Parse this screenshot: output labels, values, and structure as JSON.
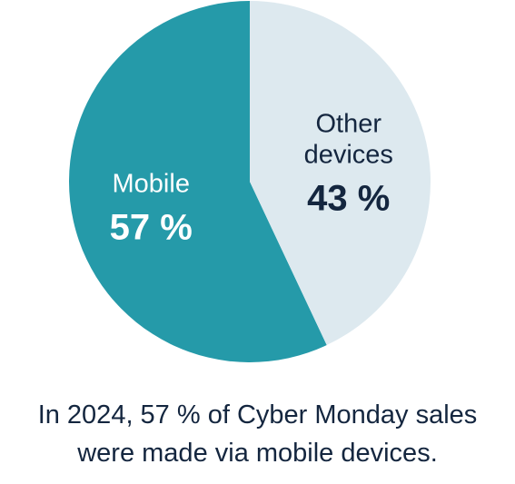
{
  "chart_data": {
    "type": "pie",
    "slices": [
      {
        "label_lines": [
          "Mobile"
        ],
        "value_label": "57 %",
        "value": 57,
        "color": "#259aa9",
        "text_color": "#ffffff"
      },
      {
        "label_lines": [
          "Other",
          "devices"
        ],
        "value_label": "43 %",
        "value": 43,
        "color": "#dde9ef",
        "text_color": "#14263f"
      }
    ]
  },
  "caption": {
    "line1": "In 2024, 57 % of Cyber Monday sales",
    "line2": "were made via mobile devices."
  }
}
